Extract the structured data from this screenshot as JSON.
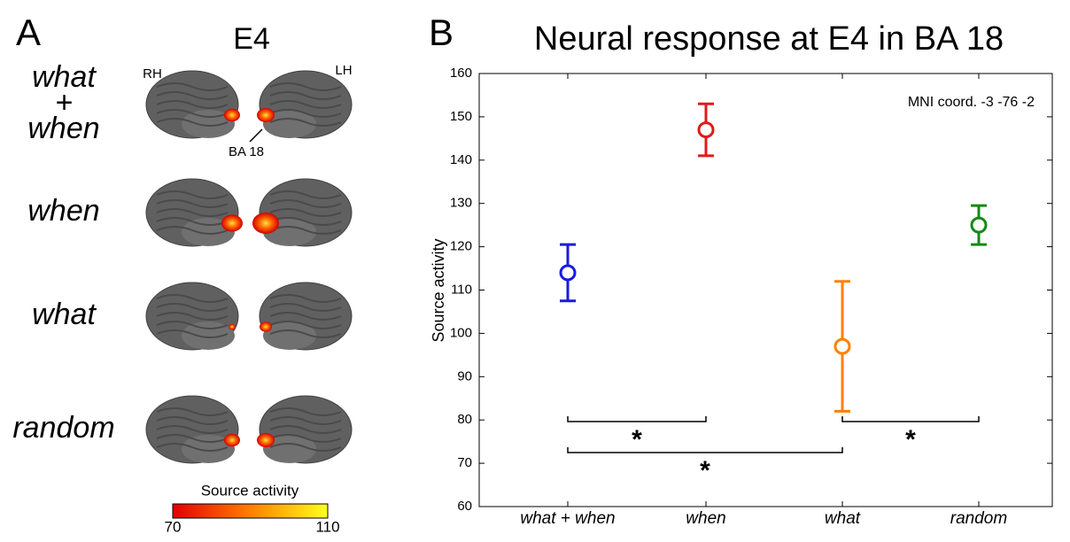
{
  "panel_a": {
    "letter": "A",
    "title": "E4",
    "hemisphere_left": "RH",
    "hemisphere_right": "LH",
    "region_label": "BA 18",
    "rows": [
      {
        "lines": [
          "what",
          "+",
          "when"
        ]
      },
      {
        "lines": [
          "when"
        ]
      },
      {
        "lines": [
          "what"
        ]
      },
      {
        "lines": [
          "random"
        ]
      }
    ],
    "colorbar": {
      "label": "Source activity",
      "min": 70,
      "max": 110
    }
  },
  "chart_data": {
    "type": "errorbar",
    "letter": "B",
    "title": "Neural response at E4 in BA 18",
    "ylabel": "Source activity",
    "annotation": "MNI coord. -3 -76 -2",
    "categories": [
      "what + when",
      "when",
      "what",
      "random"
    ],
    "values": [
      114,
      147,
      97,
      125
    ],
    "errors": [
      6.5,
      6,
      15,
      4.5
    ],
    "colors": [
      "#1a1ae0",
      "#e01a1a",
      "#ff8000",
      "#138a13"
    ],
    "ylim": [
      60,
      160
    ],
    "yticks": [
      60,
      70,
      80,
      90,
      100,
      110,
      120,
      130,
      140,
      150,
      160
    ],
    "significance": [
      {
        "from": 0,
        "to": 1,
        "label": "*"
      },
      {
        "from": 0,
        "to": 2,
        "label": "*"
      },
      {
        "from": 2,
        "to": 3,
        "label": "*"
      }
    ]
  }
}
